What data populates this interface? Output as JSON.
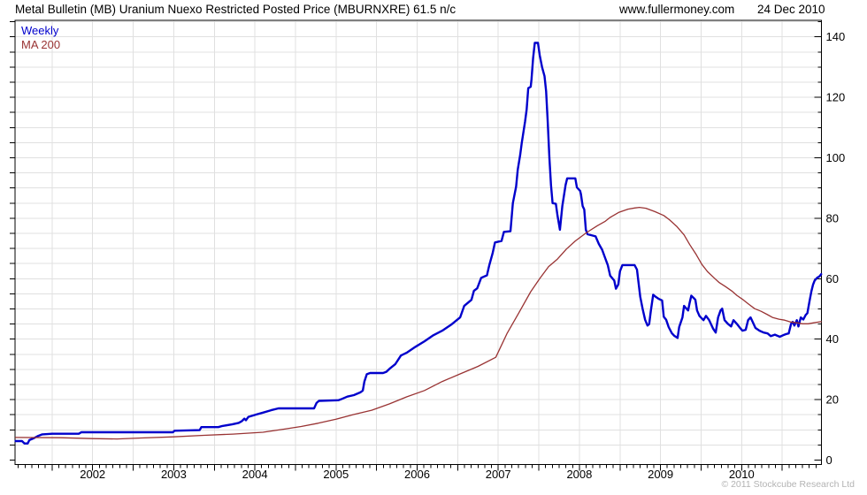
{
  "header": {
    "title": "Metal Bulletin (MB) Uranium Nuexo Restricted Posted Price (MBURNXRE) 61.5 n/c",
    "website": "www.fullermoney.com",
    "date": "24 Dec 2010"
  },
  "legend": {
    "weekly_label": "Weekly",
    "ma_label": "MA 200",
    "weekly_color": "#0000cc",
    "ma_color": "#993333"
  },
  "footer": {
    "copyright": "© 2011 Stockcube Research Ltd"
  },
  "chart_data": {
    "type": "line",
    "title": "Metal Bulletin (MB) Uranium Nuexo Restricted Posted Price (MBURNXRE) 61.5 n/c",
    "last_price": 61.5,
    "frequency": "Weekly",
    "x_axis": {
      "tick_labels": [
        2002,
        2003,
        2004,
        2005,
        2006,
        2007,
        2008,
        2009,
        2010
      ],
      "range": [
        2001.04,
        2010.98
      ],
      "grid_start": 2001.5,
      "grid_end": 2010.5,
      "grid_step": 0.5,
      "minor_tick_months": 1
    },
    "y_axis": {
      "position": "right",
      "tick_labels": [
        0,
        20,
        40,
        60,
        80,
        100,
        120,
        140
      ],
      "range": [
        0,
        147
      ],
      "grid_min": 5,
      "grid_max": 145,
      "grid_step": 5
    },
    "grid": true,
    "legend_position": "top-left",
    "series": [
      {
        "name": "Weekly",
        "color": "#0000cc",
        "width": 2.4,
        "points": [
          [
            2001.05,
            6.3
          ],
          [
            2001.13,
            6.3
          ],
          [
            2001.16,
            5.5
          ],
          [
            2001.2,
            5.5
          ],
          [
            2001.22,
            6.6
          ],
          [
            2001.27,
            7.2
          ],
          [
            2001.33,
            8.0
          ],
          [
            2001.38,
            8.5
          ],
          [
            2001.5,
            8.7
          ],
          [
            2001.83,
            8.7
          ],
          [
            2001.86,
            9.2
          ],
          [
            2002.5,
            9.2
          ],
          [
            2002.99,
            9.2
          ],
          [
            2003.01,
            9.7
          ],
          [
            2003.32,
            9.9
          ],
          [
            2003.34,
            10.9
          ],
          [
            2003.55,
            10.9
          ],
          [
            2003.6,
            11.3
          ],
          [
            2003.72,
            11.8
          ],
          [
            2003.8,
            12.3
          ],
          [
            2003.84,
            12.9
          ],
          [
            2003.87,
            13.7
          ],
          [
            2003.89,
            13.2
          ],
          [
            2003.92,
            14.3
          ],
          [
            2004.02,
            15.1
          ],
          [
            2004.1,
            15.7
          ],
          [
            2004.2,
            16.5
          ],
          [
            2004.29,
            17.1
          ],
          [
            2004.73,
            17.1
          ],
          [
            2004.76,
            18.9
          ],
          [
            2004.79,
            19.6
          ],
          [
            2005.03,
            19.8
          ],
          [
            2005.06,
            20.1
          ],
          [
            2005.14,
            21.0
          ],
          [
            2005.22,
            21.5
          ],
          [
            2005.3,
            22.4
          ],
          [
            2005.33,
            23.0
          ],
          [
            2005.35,
            26.0
          ],
          [
            2005.38,
            28.4
          ],
          [
            2005.42,
            28.8
          ],
          [
            2005.58,
            28.8
          ],
          [
            2005.62,
            29.2
          ],
          [
            2005.66,
            30.2
          ],
          [
            2005.73,
            31.7
          ],
          [
            2005.8,
            34.6
          ],
          [
            2005.87,
            35.5
          ],
          [
            2005.98,
            37.5
          ],
          [
            2006.09,
            39.3
          ],
          [
            2006.2,
            41.3
          ],
          [
            2006.31,
            42.8
          ],
          [
            2006.42,
            44.8
          ],
          [
            2006.53,
            47.2
          ],
          [
            2006.58,
            51.0
          ],
          [
            2006.67,
            53.0
          ],
          [
            2006.7,
            56.0
          ],
          [
            2006.74,
            56.8
          ],
          [
            2006.79,
            60.3
          ],
          [
            2006.86,
            61.1
          ],
          [
            2006.89,
            64.5
          ],
          [
            2006.93,
            68.4
          ],
          [
            2006.96,
            72.0
          ],
          [
            2007.04,
            72.5
          ],
          [
            2007.07,
            75.5
          ],
          [
            2007.15,
            75.7
          ],
          [
            2007.18,
            85.0
          ],
          [
            2007.22,
            90.5
          ],
          [
            2007.24,
            96.0
          ],
          [
            2007.27,
            101.0
          ],
          [
            2007.29,
            105.0
          ],
          [
            2007.33,
            112.0
          ],
          [
            2007.35,
            116.0
          ],
          [
            2007.37,
            123.0
          ],
          [
            2007.4,
            123.5
          ],
          [
            2007.41,
            126.0
          ],
          [
            2007.43,
            133.0
          ],
          [
            2007.45,
            138.0
          ],
          [
            2007.49,
            138.0
          ],
          [
            2007.51,
            134.0
          ],
          [
            2007.54,
            130.0
          ],
          [
            2007.57,
            127.0
          ],
          [
            2007.59,
            122.0
          ],
          [
            2007.61,
            112.0
          ],
          [
            2007.63,
            100.0
          ],
          [
            2007.65,
            91.0
          ],
          [
            2007.67,
            85.0
          ],
          [
            2007.71,
            84.8
          ],
          [
            2007.73,
            81.0
          ],
          [
            2007.76,
            76.2
          ],
          [
            2007.79,
            84.0
          ],
          [
            2007.83,
            91.0
          ],
          [
            2007.85,
            93.2
          ],
          [
            2007.95,
            93.2
          ],
          [
            2007.97,
            90.2
          ],
          [
            2008.01,
            89.0
          ],
          [
            2008.02,
            87.9
          ],
          [
            2008.04,
            84.0
          ],
          [
            2008.06,
            82.9
          ],
          [
            2008.08,
            76.2
          ],
          [
            2008.1,
            74.7
          ],
          [
            2008.2,
            74.0
          ],
          [
            2008.24,
            71.5
          ],
          [
            2008.28,
            69.6
          ],
          [
            2008.32,
            66.7
          ],
          [
            2008.35,
            64.5
          ],
          [
            2008.38,
            61.0
          ],
          [
            2008.43,
            59.4
          ],
          [
            2008.45,
            56.7
          ],
          [
            2008.48,
            58.1
          ],
          [
            2008.5,
            62.5
          ],
          [
            2008.53,
            64.5
          ],
          [
            2008.68,
            64.5
          ],
          [
            2008.71,
            63.0
          ],
          [
            2008.73,
            58.6
          ],
          [
            2008.75,
            54.0
          ],
          [
            2008.78,
            50.0
          ],
          [
            2008.81,
            46.4
          ],
          [
            2008.84,
            44.5
          ],
          [
            2008.86,
            45.0
          ],
          [
            2008.88,
            49.2
          ],
          [
            2008.91,
            54.7
          ],
          [
            2008.94,
            54.0
          ],
          [
            2008.98,
            53.3
          ],
          [
            2009.02,
            52.8
          ],
          [
            2009.04,
            47.4
          ],
          [
            2009.07,
            46.4
          ],
          [
            2009.1,
            44.0
          ],
          [
            2009.14,
            42.0
          ],
          [
            2009.17,
            41.1
          ],
          [
            2009.21,
            40.4
          ],
          [
            2009.23,
            44.0
          ],
          [
            2009.27,
            47.2
          ],
          [
            2009.29,
            51.0
          ],
          [
            2009.32,
            50.1
          ],
          [
            2009.34,
            49.5
          ],
          [
            2009.36,
            52.1
          ],
          [
            2009.38,
            54.4
          ],
          [
            2009.41,
            53.6
          ],
          [
            2009.43,
            53.0
          ],
          [
            2009.45,
            49.5
          ],
          [
            2009.48,
            47.7
          ],
          [
            2009.53,
            46.3
          ],
          [
            2009.56,
            47.7
          ],
          [
            2009.6,
            46.3
          ],
          [
            2009.65,
            43.4
          ],
          [
            2009.68,
            42.2
          ],
          [
            2009.71,
            47.2
          ],
          [
            2009.74,
            49.5
          ],
          [
            2009.76,
            50.1
          ],
          [
            2009.79,
            46.3
          ],
          [
            2009.83,
            45.1
          ],
          [
            2009.87,
            44.2
          ],
          [
            2009.9,
            46.3
          ],
          [
            2009.94,
            45.1
          ],
          [
            2009.98,
            43.7
          ],
          [
            2010.01,
            42.8
          ],
          [
            2010.05,
            43.1
          ],
          [
            2010.08,
            46.3
          ],
          [
            2010.11,
            47.2
          ],
          [
            2010.14,
            45.5
          ],
          [
            2010.17,
            43.7
          ],
          [
            2010.22,
            42.8
          ],
          [
            2010.27,
            42.2
          ],
          [
            2010.32,
            41.9
          ],
          [
            2010.36,
            41.0
          ],
          [
            2010.41,
            41.5
          ],
          [
            2010.47,
            40.8
          ],
          [
            2010.51,
            41.3
          ],
          [
            2010.55,
            41.7
          ],
          [
            2010.58,
            41.9
          ],
          [
            2010.61,
            45.1
          ],
          [
            2010.63,
            45.7
          ],
          [
            2010.65,
            44.5
          ],
          [
            2010.68,
            46.3
          ],
          [
            2010.7,
            44.2
          ],
          [
            2010.73,
            47.2
          ],
          [
            2010.76,
            46.5
          ],
          [
            2010.79,
            48.0
          ],
          [
            2010.81,
            48.6
          ],
          [
            2010.84,
            53.0
          ],
          [
            2010.86,
            55.9
          ],
          [
            2010.88,
            58.0
          ],
          [
            2010.9,
            59.4
          ],
          [
            2010.93,
            60.3
          ],
          [
            2010.96,
            60.8
          ],
          [
            2010.98,
            61.5
          ]
        ]
      },
      {
        "name": "MA 200",
        "color": "#993333",
        "width": 1.3,
        "points": [
          [
            2001.05,
            7.5
          ],
          [
            2001.6,
            7.4
          ],
          [
            2002.0,
            7.1
          ],
          [
            2002.3,
            7.0
          ],
          [
            2002.6,
            7.3
          ],
          [
            2003.0,
            7.7
          ],
          [
            2003.37,
            8.2
          ],
          [
            2003.73,
            8.6
          ],
          [
            2004.1,
            9.2
          ],
          [
            2004.35,
            10.2
          ],
          [
            2004.57,
            11.1
          ],
          [
            2004.78,
            12.2
          ],
          [
            2005.0,
            13.5
          ],
          [
            2005.22,
            15.1
          ],
          [
            2005.44,
            16.5
          ],
          [
            2005.66,
            18.6
          ],
          [
            2005.87,
            20.9
          ],
          [
            2006.09,
            23.0
          ],
          [
            2006.31,
            26.0
          ],
          [
            2006.53,
            28.5
          ],
          [
            2006.75,
            31.0
          ],
          [
            2006.97,
            34.0
          ],
          [
            2007.11,
            42.0
          ],
          [
            2007.25,
            48.5
          ],
          [
            2007.4,
            55.7
          ],
          [
            2007.51,
            60.0
          ],
          [
            2007.62,
            64.0
          ],
          [
            2007.73,
            66.5
          ],
          [
            2007.84,
            69.8
          ],
          [
            2007.95,
            72.5
          ],
          [
            2008.09,
            75.3
          ],
          [
            2008.22,
            77.5
          ],
          [
            2008.32,
            79.0
          ],
          [
            2008.38,
            80.3
          ],
          [
            2008.49,
            82.0
          ],
          [
            2008.6,
            83.0
          ],
          [
            2008.68,
            83.4
          ],
          [
            2008.74,
            83.6
          ],
          [
            2008.82,
            83.3
          ],
          [
            2008.93,
            82.2
          ],
          [
            2009.04,
            80.9
          ],
          [
            2009.11,
            79.5
          ],
          [
            2009.2,
            77.3
          ],
          [
            2009.29,
            74.5
          ],
          [
            2009.36,
            71.3
          ],
          [
            2009.44,
            68.0
          ],
          [
            2009.51,
            64.7
          ],
          [
            2009.58,
            62.3
          ],
          [
            2009.66,
            60.3
          ],
          [
            2009.72,
            58.8
          ],
          [
            2009.8,
            57.4
          ],
          [
            2009.88,
            55.9
          ],
          [
            2009.94,
            54.5
          ],
          [
            2010.02,
            53.0
          ],
          [
            2010.09,
            51.5
          ],
          [
            2010.16,
            50.1
          ],
          [
            2010.24,
            49.2
          ],
          [
            2010.32,
            48.1
          ],
          [
            2010.38,
            47.2
          ],
          [
            2010.46,
            46.6
          ],
          [
            2010.53,
            46.3
          ],
          [
            2010.6,
            45.7
          ],
          [
            2010.68,
            45.4
          ],
          [
            2010.75,
            45.1
          ],
          [
            2010.82,
            45.1
          ],
          [
            2010.89,
            45.4
          ],
          [
            2010.98,
            45.8
          ]
        ]
      }
    ]
  }
}
